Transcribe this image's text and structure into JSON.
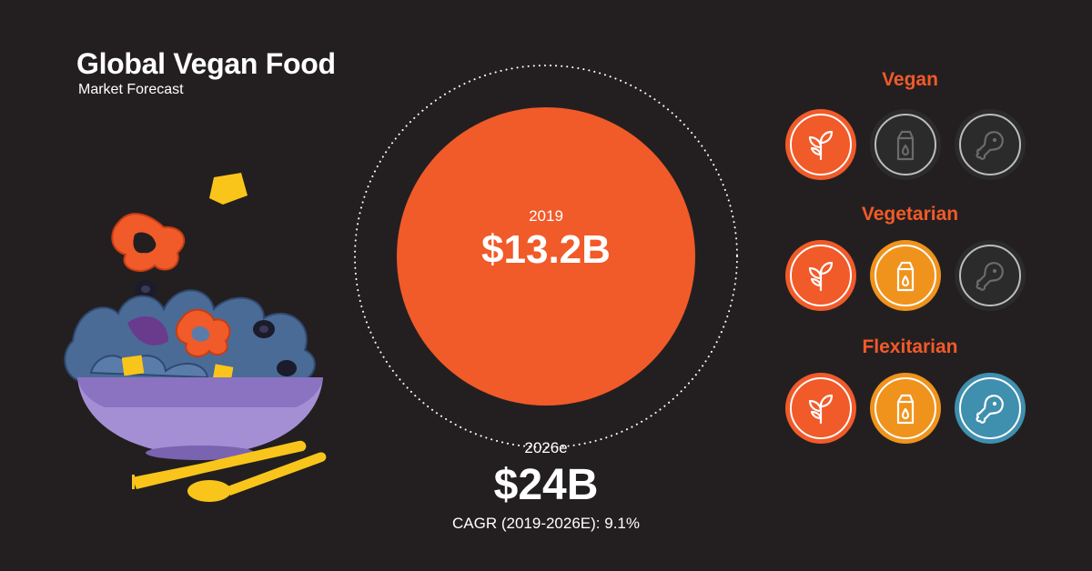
{
  "header": {
    "title": "Global Vegan Food",
    "subtitle": "Market Forecast"
  },
  "market": {
    "current": {
      "year": "2019",
      "value": "$13.2B"
    },
    "forecast": {
      "year": "2026e",
      "value": "$24B"
    },
    "cagr": "CAGR (2019-2026E): 9.1%"
  },
  "diets": [
    {
      "label": "Vegan",
      "icons": [
        {
          "icon": "plant-icon",
          "active": true,
          "color": "#f15a29"
        },
        {
          "icon": "milk-carton-icon",
          "active": false,
          "color": "#2b2b2b"
        },
        {
          "icon": "chicken-leg-icon",
          "active": false,
          "color": "#2b2b2b"
        }
      ]
    },
    {
      "label": "Vegetarian",
      "icons": [
        {
          "icon": "plant-icon",
          "active": true,
          "color": "#f15a29"
        },
        {
          "icon": "milk-carton-icon",
          "active": true,
          "color": "#f0931c"
        },
        {
          "icon": "chicken-leg-icon",
          "active": false,
          "color": "#2b2b2b"
        }
      ]
    },
    {
      "label": "Flexitarian",
      "icons": [
        {
          "icon": "plant-icon",
          "active": true,
          "color": "#f15a29"
        },
        {
          "icon": "milk-carton-icon",
          "active": true,
          "color": "#f0931c"
        },
        {
          "icon": "chicken-leg-icon",
          "active": true,
          "color": "#3f8fae"
        }
      ]
    }
  ],
  "colors": {
    "background": "#231f20",
    "accent": "#f15a29",
    "label": "#f15a29",
    "dairy": "#f0931c",
    "meat": "#3f8fae",
    "inactive": "#2b2b2b"
  }
}
